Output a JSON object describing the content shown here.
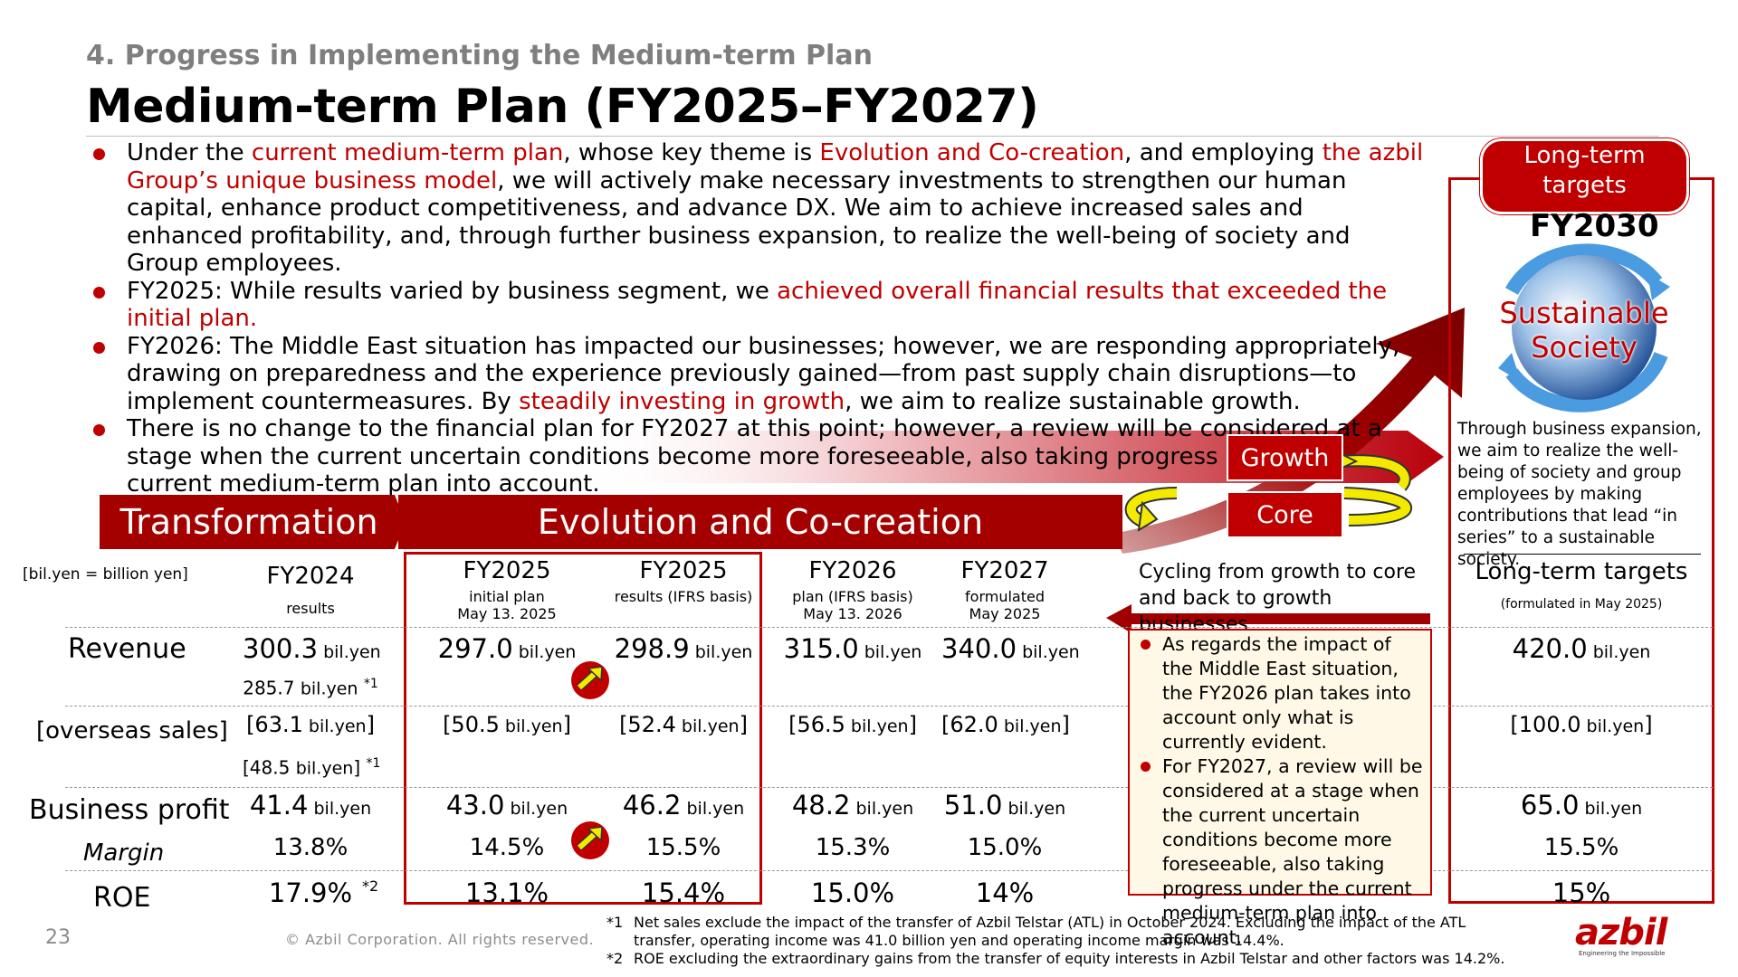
{
  "header": {
    "section": "4. Progress in Implementing the Medium-term Plan",
    "title": "Medium-term Plan (FY2025–FY2027)"
  },
  "bullets": [
    [
      {
        "t": "Under the ",
        "red": false
      },
      {
        "t": "current medium-term plan",
        "red": true
      },
      {
        "t": ", whose key theme is ",
        "red": false
      },
      {
        "t": "Evolution and Co-creation",
        "red": true
      },
      {
        "t": ", and employing ",
        "red": false
      },
      {
        "t": "the azbil Group’s unique business model",
        "red": true
      },
      {
        "t": ", we will actively make necessary investments to strengthen our human capital, enhance product competitiveness, and advance DX. We aim to achieve increased sales and enhanced profitability, and, through further business expansion, to realize the well-being of society and Group employees.",
        "red": false
      }
    ],
    [
      {
        "t": "FY2025: While results varied by business segment, we ",
        "red": false
      },
      {
        "t": "achieved overall financial results that exceeded the initial plan.",
        "red": true
      }
    ],
    [
      {
        "t": "FY2026: The Middle East situation has impacted our businesses; however, we are responding appropriately, drawing on preparedness and the experience previously gained—from past supply chain disruptions—to implement countermeasures. By ",
        "red": false
      },
      {
        "t": "steadily investing in growth",
        "red": true
      },
      {
        "t": ", we aim to realize sustainable growth.",
        "red": false
      }
    ],
    [
      {
        "t": "There is no change to the financial plan for FY2027 at this point; however, a review will be considered at a stage when the current uncertain conditions become more foreseeable, also taking progress under the current medium-term plan into account.",
        "red": false
      }
    ]
  ],
  "banner": {
    "transformation": "Transformation",
    "evolution": "Evolution and Co-creation",
    "growth": "Growth",
    "core": "Core",
    "cycling": "Cycling from growth to core and back to growth businesses"
  },
  "long_term": {
    "badge": "Long-term targets",
    "year": "FY2030",
    "globe_text_1": "Sustainable",
    "globe_text_2": "Society",
    "description": "Through business expansion, we aim to realize the well-being of society and group employees by making contributions that lead “in series” to a sustainable society.",
    "col_header": "Long-term targets",
    "col_sub": "(formulated in May 2025)"
  },
  "table": {
    "unit_note": "[bil.yen = billion yen]",
    "unit": "bil.yen",
    "columns": [
      {
        "h": "FY2024",
        "s1": "results",
        "s2": ""
      },
      {
        "h": "FY2025",
        "s1": "initial plan",
        "s2": "May 13. 2025"
      },
      {
        "h": "FY2025",
        "s1": "results (IFRS basis)",
        "s2": ""
      },
      {
        "h": "FY2026",
        "s1": "plan (IFRS basis)",
        "s2": "May 13. 2026"
      },
      {
        "h": "FY2027",
        "s1": "formulated",
        "s2": "May 2025"
      }
    ],
    "row_labels": {
      "revenue": "Revenue",
      "overseas": "[overseas sales]",
      "bp": "Business profit",
      "margin": "Margin",
      "roe": "ROE"
    },
    "revenue": [
      "300.3",
      "297.0",
      "298.9",
      "315.0",
      "340.0",
      "420.0"
    ],
    "revenue_adj": "285.7",
    "revenue_adj_note": "*1",
    "overseas": [
      "[63.1",
      "[50.5",
      "[52.4",
      "[56.5",
      "[62.0",
      "[100.0"
    ],
    "overseas_adj": "[48.5",
    "overseas_adj_note": "*1",
    "bp": [
      "41.4",
      "43.0",
      "46.2",
      "48.2",
      "51.0",
      "65.0"
    ],
    "margin": [
      "13.8%",
      "14.5%",
      "15.5%",
      "15.3%",
      "15.0%",
      "15.5%"
    ],
    "roe": [
      "17.9%",
      "13.1%",
      "15.4%",
      "15.0%",
      "14%",
      "15%"
    ],
    "roe_note": "*2"
  },
  "notes": [
    "As regards the impact of the Middle East situation, the FY2026 plan takes into account only what is currently evident.",
    "For FY2027, a review will be considered at a stage when the current uncertain conditions become more foreseeable, also taking progress under the current medium-term plan into account."
  ],
  "footnotes": [
    {
      "k": "*1",
      "t": "Net sales exclude the impact of the transfer of Azbil Telstar (ATL) in October 2024. Excluding the impact of the ATL transfer, operating income was 41.0 billion yen and operating income margin was 14.4%."
    },
    {
      "k": "*2",
      "t": "ROE excluding the extraordinary gains from the transfer of equity interests in Azbil Telstar and other factors was 14.2%."
    }
  ],
  "footer": {
    "page": "23",
    "copyright": "© Azbil Corporation. All rights reserved.",
    "logo": "azbil",
    "tagline": "Engineering the Impossible"
  },
  "colors": {
    "accent": "#c00000",
    "banner": "#a50000"
  }
}
